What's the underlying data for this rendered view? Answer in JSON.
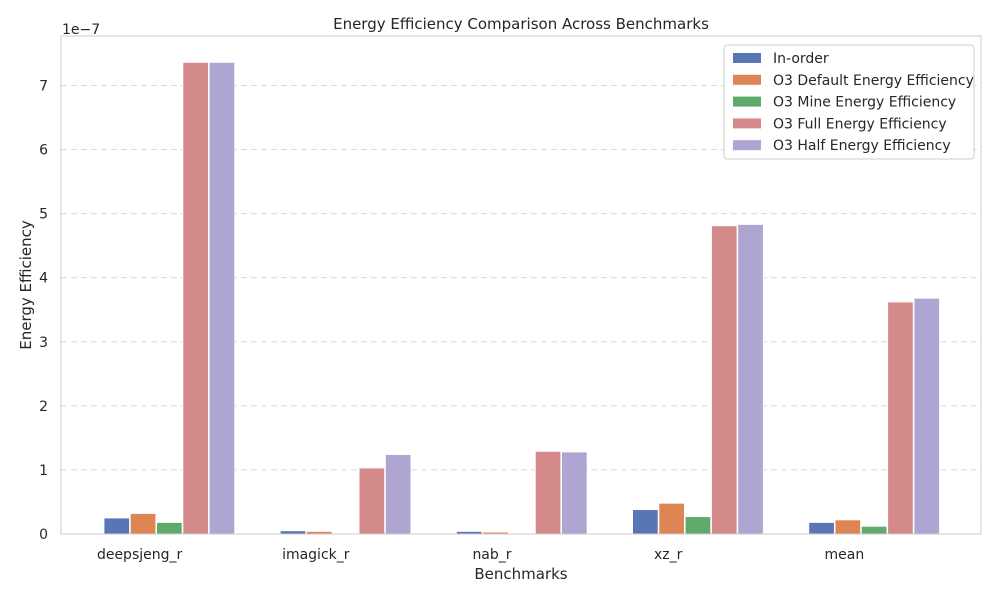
{
  "chart_data": {
    "type": "bar",
    "title": "Energy Efficiency Comparison Across Benchmarks",
    "xlabel": "Benchmarks",
    "ylabel": "Energy Efficiency",
    "y_scale_label": "1e−7",
    "ylim": [
      0,
      7.6
    ],
    "y_ticks": [
      0,
      1,
      2,
      3,
      4,
      5,
      6,
      7
    ],
    "grid": "horizontal dashed",
    "legend_position": "top-right",
    "categories": [
      "deepsjeng_r",
      "imagick_r",
      "nab_r",
      "xz_r",
      "mean"
    ],
    "series": [
      {
        "name": "In-order",
        "color": "#5875b6",
        "values": [
          0.25,
          0.05,
          0.04,
          0.38,
          0.18
        ]
      },
      {
        "name": "O3 Default Energy Efficiency",
        "color": "#dd8553",
        "values": [
          0.32,
          0.04,
          0.03,
          0.48,
          0.22
        ]
      },
      {
        "name": "O3 Mine Energy Efficiency",
        "color": "#5fa96a",
        "values": [
          0.18,
          0.01,
          0.01,
          0.27,
          0.12
        ]
      },
      {
        "name": "O3 Full Energy Efficiency",
        "color": "#d58a8a",
        "values": [
          7.36,
          1.03,
          1.29,
          4.81,
          3.62
        ]
      },
      {
        "name": "O3 Half Energy Efficiency",
        "color": "#aea5d3",
        "values": [
          7.36,
          1.24,
          1.28,
          4.83,
          3.68
        ]
      }
    ]
  }
}
